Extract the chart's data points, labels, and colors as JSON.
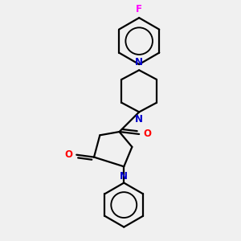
{
  "bg_color": "#f0f0f0",
  "bond_color": "#000000",
  "N_color": "#0000cc",
  "O_color": "#ff0000",
  "F_color": "#ff00ff",
  "linewidth": 1.6,
  "figsize": [
    3.0,
    3.0
  ],
  "dpi": 100,
  "xlim": [
    0,
    10
  ],
  "ylim": [
    0,
    10
  ]
}
